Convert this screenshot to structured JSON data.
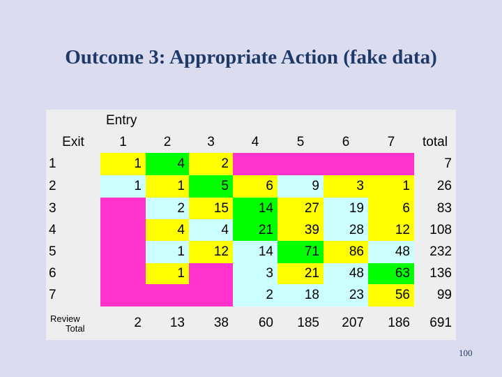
{
  "title": "Outcome 3:  Appropriate Action (fake data)",
  "entry_label": "Entry",
  "exit_label": "Exit",
  "column_headers": [
    "1",
    "2",
    "3",
    "4",
    "5",
    "6",
    "7",
    "total"
  ],
  "row_labels": [
    "1",
    "2",
    "3",
    "4",
    "5",
    "6",
    "7"
  ],
  "review_label": "Review",
  "total_label": "Total",
  "rows": [
    [
      "1",
      "4",
      "2",
      "",
      "",
      "",
      "",
      "7"
    ],
    [
      "1",
      "1",
      "5",
      "6",
      "9",
      "3",
      "1",
      "26"
    ],
    [
      "",
      "2",
      "15",
      "14",
      "27",
      "19",
      "6",
      "83"
    ],
    [
      "",
      "4",
      "4",
      "21",
      "39",
      "28",
      "12",
      "108"
    ],
    [
      "",
      "1",
      "12",
      "14",
      "71",
      "86",
      "48",
      "232"
    ],
    [
      "",
      "1",
      "",
      "3",
      "21",
      "48",
      "63",
      "136"
    ],
    [
      "",
      "",
      "",
      "2",
      "18",
      "23",
      "56",
      "99"
    ]
  ],
  "totals": [
    "2",
    "13",
    "38",
    "60",
    "185",
    "207",
    "186",
    "691"
  ],
  "colors": {
    "yellow": "#ffff00",
    "light_cyan": "#ccffff",
    "magenta": "#ff33cc",
    "green": "#00ff00",
    "grey": "#eeeeee",
    "title": "#1f3a68"
  },
  "page_number": "100"
}
